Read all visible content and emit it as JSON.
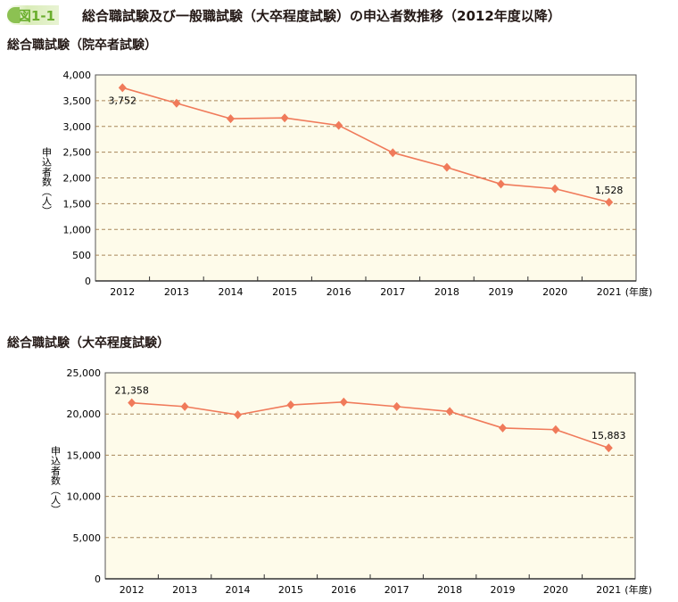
{
  "figure": {
    "label": "図1-1",
    "title": "総合職試験及び一般職試験（大卒程度試験）の申込者数推移（2012年度以降）"
  },
  "colors": {
    "line": "#f07a5a",
    "plot_bg": "#fefbea",
    "grid": "#a8875a",
    "accent": "#6aae2d"
  },
  "chart_data": [
    {
      "type": "line",
      "title": "総合職試験（院卒者試験）",
      "ylabel": "申込者数（人）",
      "xunit": "(年度)",
      "categories": [
        "2012",
        "2013",
        "2014",
        "2015",
        "2016",
        "2017",
        "2018",
        "2019",
        "2020",
        "2021"
      ],
      "values": [
        3752,
        3450,
        3150,
        3165,
        3020,
        2490,
        2205,
        1880,
        1790,
        1528
      ],
      "ylim": [
        0,
        4000
      ],
      "yticks": [
        0,
        500,
        1000,
        1500,
        2000,
        2500,
        3000,
        3500,
        4000
      ],
      "ytick_labels": [
        "0",
        "500",
        "1,000",
        "1,500",
        "2,000",
        "2,500",
        "3,000",
        "3,500",
        "4,000"
      ],
      "data_labels": [
        {
          "index": 0,
          "text": "3,752"
        },
        {
          "index": 9,
          "text": "1,528"
        }
      ],
      "grid": true
    },
    {
      "type": "line",
      "title": "総合職試験（大卒程度試験）",
      "ylabel": "申込者数（人）",
      "xunit": "(年度)",
      "categories": [
        "2012",
        "2013",
        "2014",
        "2015",
        "2016",
        "2017",
        "2018",
        "2019",
        "2020",
        "2021"
      ],
      "values": [
        21358,
        20900,
        19900,
        21100,
        21450,
        20900,
        20300,
        18300,
        18100,
        15883
      ],
      "ylim": [
        0,
        25000
      ],
      "yticks": [
        0,
        5000,
        10000,
        15000,
        20000,
        25000
      ],
      "ytick_labels": [
        "0",
        "5,000",
        "10,000",
        "15,000",
        "20,000",
        "25,000"
      ],
      "data_labels": [
        {
          "index": 0,
          "text": "21,358"
        },
        {
          "index": 9,
          "text": "15,883"
        }
      ],
      "grid": true
    }
  ]
}
